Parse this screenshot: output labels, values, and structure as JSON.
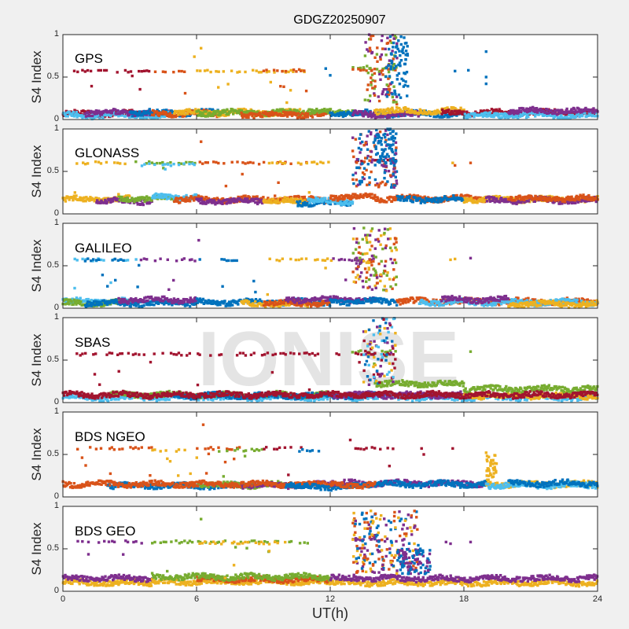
{
  "figure": {
    "title": "GDGZ20250907",
    "xlabel": "UT(h)",
    "watermark": "IONISE",
    "xticklabels": [
      "0",
      "6",
      "12",
      "18",
      "24"
    ]
  },
  "colors": {
    "blue": "#0072BD",
    "orange": "#D95319",
    "yellow": "#EDB120",
    "purple": "#7E2F8E",
    "green": "#77AC30",
    "cyan": "#4DBEEE",
    "red": "#A2142F",
    "axes_bg": "#ffffff",
    "figure_bg": "#f0f0f0",
    "watermark": "#e4e4e4"
  },
  "chart_data": [
    {
      "type": "scatter",
      "label": "GPS",
      "ylabel": "S4 Index",
      "xlim": [
        0,
        24
      ],
      "ylim": [
        0,
        1
      ],
      "xticks": [
        0,
        6,
        12,
        18,
        24
      ],
      "yticks": [
        0,
        0.5,
        1
      ],
      "yticklabels": [
        "0",
        "0.5",
        "1"
      ],
      "grid": false,
      "baseline": [
        [
          0,
          5,
          0.07,
          "red"
        ],
        [
          0,
          5,
          0.05,
          "cyan"
        ],
        [
          1,
          4,
          0.08,
          "purple"
        ],
        [
          3,
          7,
          0.08,
          "blue"
        ],
        [
          4,
          7,
          0.07,
          "orange"
        ],
        [
          5,
          11,
          0.08,
          "yellow"
        ],
        [
          6,
          11,
          0.08,
          "green"
        ],
        [
          8,
          12,
          0.06,
          "orange"
        ],
        [
          11,
          13,
          0.09,
          "green"
        ],
        [
          12,
          18,
          0.07,
          "blue"
        ],
        [
          13,
          16,
          0.06,
          "purple"
        ],
        [
          14,
          18,
          0.1,
          "yellow"
        ],
        [
          17,
          24,
          0.08,
          "red"
        ],
        [
          18,
          24,
          0.05,
          "cyan"
        ],
        [
          20,
          24,
          0.1,
          "purple"
        ]
      ],
      "elevated": [
        [
          0.5,
          4,
          0.57,
          "red"
        ],
        [
          4,
          5.5,
          0.56,
          "orange"
        ],
        [
          6,
          11,
          0.57,
          "yellow"
        ],
        [
          9,
          11,
          0.58,
          "orange"
        ],
        [
          13,
          15,
          0.6,
          "green"
        ],
        [
          13,
          15,
          0.58,
          "orange"
        ]
      ],
      "bursts": [
        [
          13.5,
          15,
          0.2,
          1.0,
          [
            "purple",
            "orange",
            "green"
          ]
        ],
        [
          14.5,
          15.5,
          0.25,
          1.0,
          [
            "blue"
          ]
        ]
      ],
      "isolated": [
        [
          17.6,
          0.57,
          "blue"
        ],
        [
          18.2,
          0.58,
          "blue"
        ],
        [
          19,
          0.8,
          "blue"
        ],
        [
          19,
          0.5,
          "blue"
        ],
        [
          19,
          0.42,
          "blue"
        ],
        [
          6.2,
          0.84,
          "yellow"
        ],
        [
          5.9,
          0.74,
          "yellow"
        ],
        [
          11.8,
          0.6,
          "blue"
        ],
        [
          12,
          0.52,
          "blue"
        ]
      ]
    },
    {
      "type": "scatter",
      "label": "GLONASS",
      "ylabel": "S4 Index",
      "xlim": [
        0,
        24
      ],
      "ylim": [
        0,
        1
      ],
      "xticks": [
        0,
        6,
        12,
        18,
        24
      ],
      "yticks": [
        0,
        0.5,
        1
      ],
      "yticklabels": [
        "0",
        "0.5",
        "1"
      ],
      "grid": false,
      "baseline": [
        [
          0,
          3,
          0.17,
          "yellow"
        ],
        [
          1.5,
          4,
          0.15,
          "purple"
        ],
        [
          2.5,
          5,
          0.18,
          "green"
        ],
        [
          4,
          6,
          0.2,
          "cyan"
        ],
        [
          5,
          12,
          0.17,
          "orange"
        ],
        [
          6,
          9,
          0.15,
          "purple"
        ],
        [
          9,
          11,
          0.15,
          "yellow"
        ],
        [
          10.5,
          13,
          0.13,
          "blue"
        ],
        [
          11,
          13,
          0.15,
          "cyan"
        ],
        [
          12,
          14,
          0.2,
          "orange"
        ],
        [
          14,
          19,
          0.18,
          "orange"
        ],
        [
          15,
          18,
          0.17,
          "blue"
        ],
        [
          18,
          24,
          0.17,
          "yellow"
        ],
        [
          19,
          24,
          0.16,
          "purple"
        ],
        [
          20,
          24,
          0.18,
          "orange"
        ]
      ],
      "elevated": [
        [
          0.5,
          3,
          0.6,
          "yellow"
        ],
        [
          3,
          6,
          0.6,
          "green"
        ],
        [
          3.5,
          6,
          0.58,
          "cyan"
        ],
        [
          6,
          11,
          0.6,
          "orange"
        ],
        [
          9,
          12,
          0.6,
          "yellow"
        ],
        [
          13,
          15,
          0.62,
          "red"
        ]
      ],
      "bursts": [
        [
          13,
          15,
          0.3,
          1.0,
          [
            "blue",
            "orange",
            "purple"
          ]
        ],
        [
          14,
          15,
          0.55,
          1.0,
          [
            "blue"
          ]
        ]
      ],
      "isolated": [
        [
          17.5,
          0.6,
          "yellow"
        ],
        [
          17.6,
          0.57,
          "orange"
        ],
        [
          18.3,
          0.6,
          "orange"
        ],
        [
          6.2,
          0.85,
          "orange"
        ]
      ]
    },
    {
      "type": "scatter",
      "label": "GALILEO",
      "ylabel": "S4 Index",
      "xlim": [
        0,
        24
      ],
      "ylim": [
        0,
        1
      ],
      "xticks": [
        0,
        6,
        12,
        18,
        24
      ],
      "yticks": [
        0,
        0.5,
        1
      ],
      "yticklabels": [
        "0",
        "0.5",
        "1"
      ],
      "grid": false,
      "baseline": [
        [
          0,
          3,
          0.08,
          "cyan"
        ],
        [
          0,
          3,
          0.06,
          "green"
        ],
        [
          1,
          6,
          0.06,
          "blue"
        ],
        [
          2.5,
          6,
          0.1,
          "purple"
        ],
        [
          6,
          12,
          0.07,
          "blue"
        ],
        [
          8,
          11,
          0.05,
          "yellow"
        ],
        [
          9,
          12,
          0.06,
          "orange"
        ],
        [
          10,
          14,
          0.1,
          "purple"
        ],
        [
          12,
          15,
          0.08,
          "blue"
        ],
        [
          15,
          24,
          0.08,
          "orange"
        ],
        [
          16,
          24,
          0.07,
          "cyan"
        ],
        [
          17,
          20,
          0.1,
          "purple"
        ],
        [
          20,
          24,
          0.05,
          "yellow"
        ]
      ],
      "elevated": [
        [
          0.5,
          3.5,
          0.57,
          "cyan"
        ],
        [
          1,
          3.5,
          0.57,
          "blue"
        ],
        [
          3.5,
          6,
          0.57,
          "purple"
        ],
        [
          6,
          9,
          0.57,
          "blue"
        ],
        [
          9,
          12,
          0.57,
          "yellow"
        ],
        [
          12,
          14,
          0.57,
          "purple"
        ]
      ],
      "bursts": [
        [
          13,
          15,
          0.2,
          0.95,
          [
            "purple",
            "green",
            "orange",
            "yellow"
          ]
        ]
      ],
      "isolated": [
        [
          17.4,
          0.57,
          "yellow"
        ],
        [
          17.6,
          0.58,
          "yellow"
        ],
        [
          18.3,
          0.59,
          "purple"
        ],
        [
          6.1,
          0.8,
          "purple"
        ]
      ]
    },
    {
      "type": "scatter",
      "label": "SBAS",
      "ylabel": "S4 Index",
      "xlim": [
        0,
        24
      ],
      "ylim": [
        0,
        1
      ],
      "xticks": [
        0,
        6,
        12,
        18,
        24
      ],
      "yticks": [
        0,
        0.5,
        1
      ],
      "yticklabels": [
        "0",
        "0.5",
        "1"
      ],
      "grid": false,
      "baseline": [
        [
          0,
          24,
          0.06,
          "cyan"
        ],
        [
          2,
          12,
          0.09,
          "green"
        ],
        [
          5,
          14,
          0.08,
          "blue"
        ],
        [
          12,
          18,
          0.09,
          "purple"
        ],
        [
          18,
          24,
          0.08,
          "yellow"
        ],
        [
          14,
          18,
          0.22,
          "green"
        ],
        [
          18,
          24,
          0.16,
          "green"
        ],
        [
          0,
          24,
          0.09,
          "red"
        ]
      ],
      "elevated": [
        [
          0.5,
          12.5,
          0.57,
          "red"
        ],
        [
          13,
          15,
          0.6,
          "green"
        ],
        [
          13,
          15,
          0.57,
          "red"
        ]
      ],
      "bursts": [
        [
          13.5,
          15,
          0.2,
          1.0,
          [
            "blue",
            "cyan",
            "red",
            "purple",
            "yellow"
          ]
        ]
      ],
      "isolated": [
        [
          18.3,
          0.6,
          "green"
        ]
      ]
    },
    {
      "type": "scatter",
      "label": "BDS NGEO",
      "ylabel": "S4 Index",
      "xlim": [
        0,
        24
      ],
      "ylim": [
        0,
        1
      ],
      "xticks": [
        0,
        6,
        12,
        18,
        24
      ],
      "yticks": [
        0,
        0.5,
        1
      ],
      "yticklabels": [
        "0",
        "0.5",
        "1"
      ],
      "grid": false,
      "baseline": [
        [
          2,
          8,
          0.13,
          "blue"
        ],
        [
          6,
          10,
          0.14,
          "green"
        ],
        [
          8,
          12,
          0.14,
          "purple"
        ],
        [
          0,
          12,
          0.15,
          "orange"
        ],
        [
          10,
          13,
          0.12,
          "blue"
        ],
        [
          12,
          19,
          0.16,
          "purple"
        ],
        [
          13,
          19,
          0.15,
          "blue"
        ],
        [
          12,
          14,
          0.14,
          "orange"
        ],
        [
          19,
          24,
          0.15,
          "yellow"
        ],
        [
          19,
          24,
          0.14,
          "cyan"
        ],
        [
          20,
          24,
          0.16,
          "blue"
        ]
      ],
      "elevated": [
        [
          0.5,
          4,
          0.57,
          "orange"
        ],
        [
          4,
          6,
          0.55,
          "yellow"
        ],
        [
          6,
          8,
          0.57,
          "orange"
        ],
        [
          7,
          9,
          0.55,
          "green"
        ],
        [
          9,
          11,
          0.57,
          "red"
        ],
        [
          10,
          11.5,
          0.55,
          "blue"
        ],
        [
          13,
          15,
          0.57,
          "red"
        ]
      ],
      "bursts": [
        [
          19,
          19.5,
          0.2,
          0.5,
          [
            "yellow"
          ]
        ]
      ],
      "isolated": [
        [
          16.1,
          0.57,
          "red"
        ],
        [
          16.2,
          0.5,
          "red"
        ],
        [
          17.5,
          0.57,
          "red"
        ],
        [
          19,
          0.52,
          "yellow"
        ],
        [
          6.3,
          0.85,
          "orange"
        ],
        [
          12.9,
          0.67,
          "red"
        ]
      ]
    },
    {
      "type": "scatter",
      "label": "BDS GEO",
      "ylabel": "S4 Index",
      "xlim": [
        0,
        24
      ],
      "ylim": [
        0,
        1
      ],
      "xticks": [
        0,
        6,
        12,
        18,
        24
      ],
      "yticks": [
        0,
        0.5,
        1
      ],
      "yticklabels": [
        "0",
        "0.5",
        "1"
      ],
      "grid": false,
      "baseline": [
        [
          0,
          4,
          0.1,
          "yellow"
        ],
        [
          0,
          4,
          0.15,
          "purple"
        ],
        [
          4,
          12,
          0.11,
          "yellow"
        ],
        [
          6,
          12,
          0.14,
          "orange"
        ],
        [
          4,
          12,
          0.17,
          "green"
        ],
        [
          12,
          24,
          0.1,
          "yellow"
        ],
        [
          12,
          24,
          0.15,
          "purple"
        ]
      ],
      "elevated": [
        [
          0.5,
          4,
          0.58,
          "purple"
        ],
        [
          4,
          11,
          0.58,
          "green"
        ],
        [
          6,
          10,
          0.57,
          "yellow"
        ],
        [
          13,
          14.5,
          0.6,
          "purple"
        ]
      ],
      "bursts": [
        [
          13,
          16,
          0.2,
          0.95,
          [
            "purple",
            "orange",
            "yellow",
            "blue"
          ]
        ],
        [
          15,
          16.5,
          0.2,
          0.5,
          [
            "purple",
            "blue"
          ]
        ]
      ],
      "isolated": [
        [
          17.2,
          0.58,
          "purple"
        ],
        [
          17.4,
          0.56,
          "purple"
        ],
        [
          18.3,
          0.58,
          "purple"
        ],
        [
          6.2,
          0.85,
          "green"
        ]
      ]
    }
  ]
}
